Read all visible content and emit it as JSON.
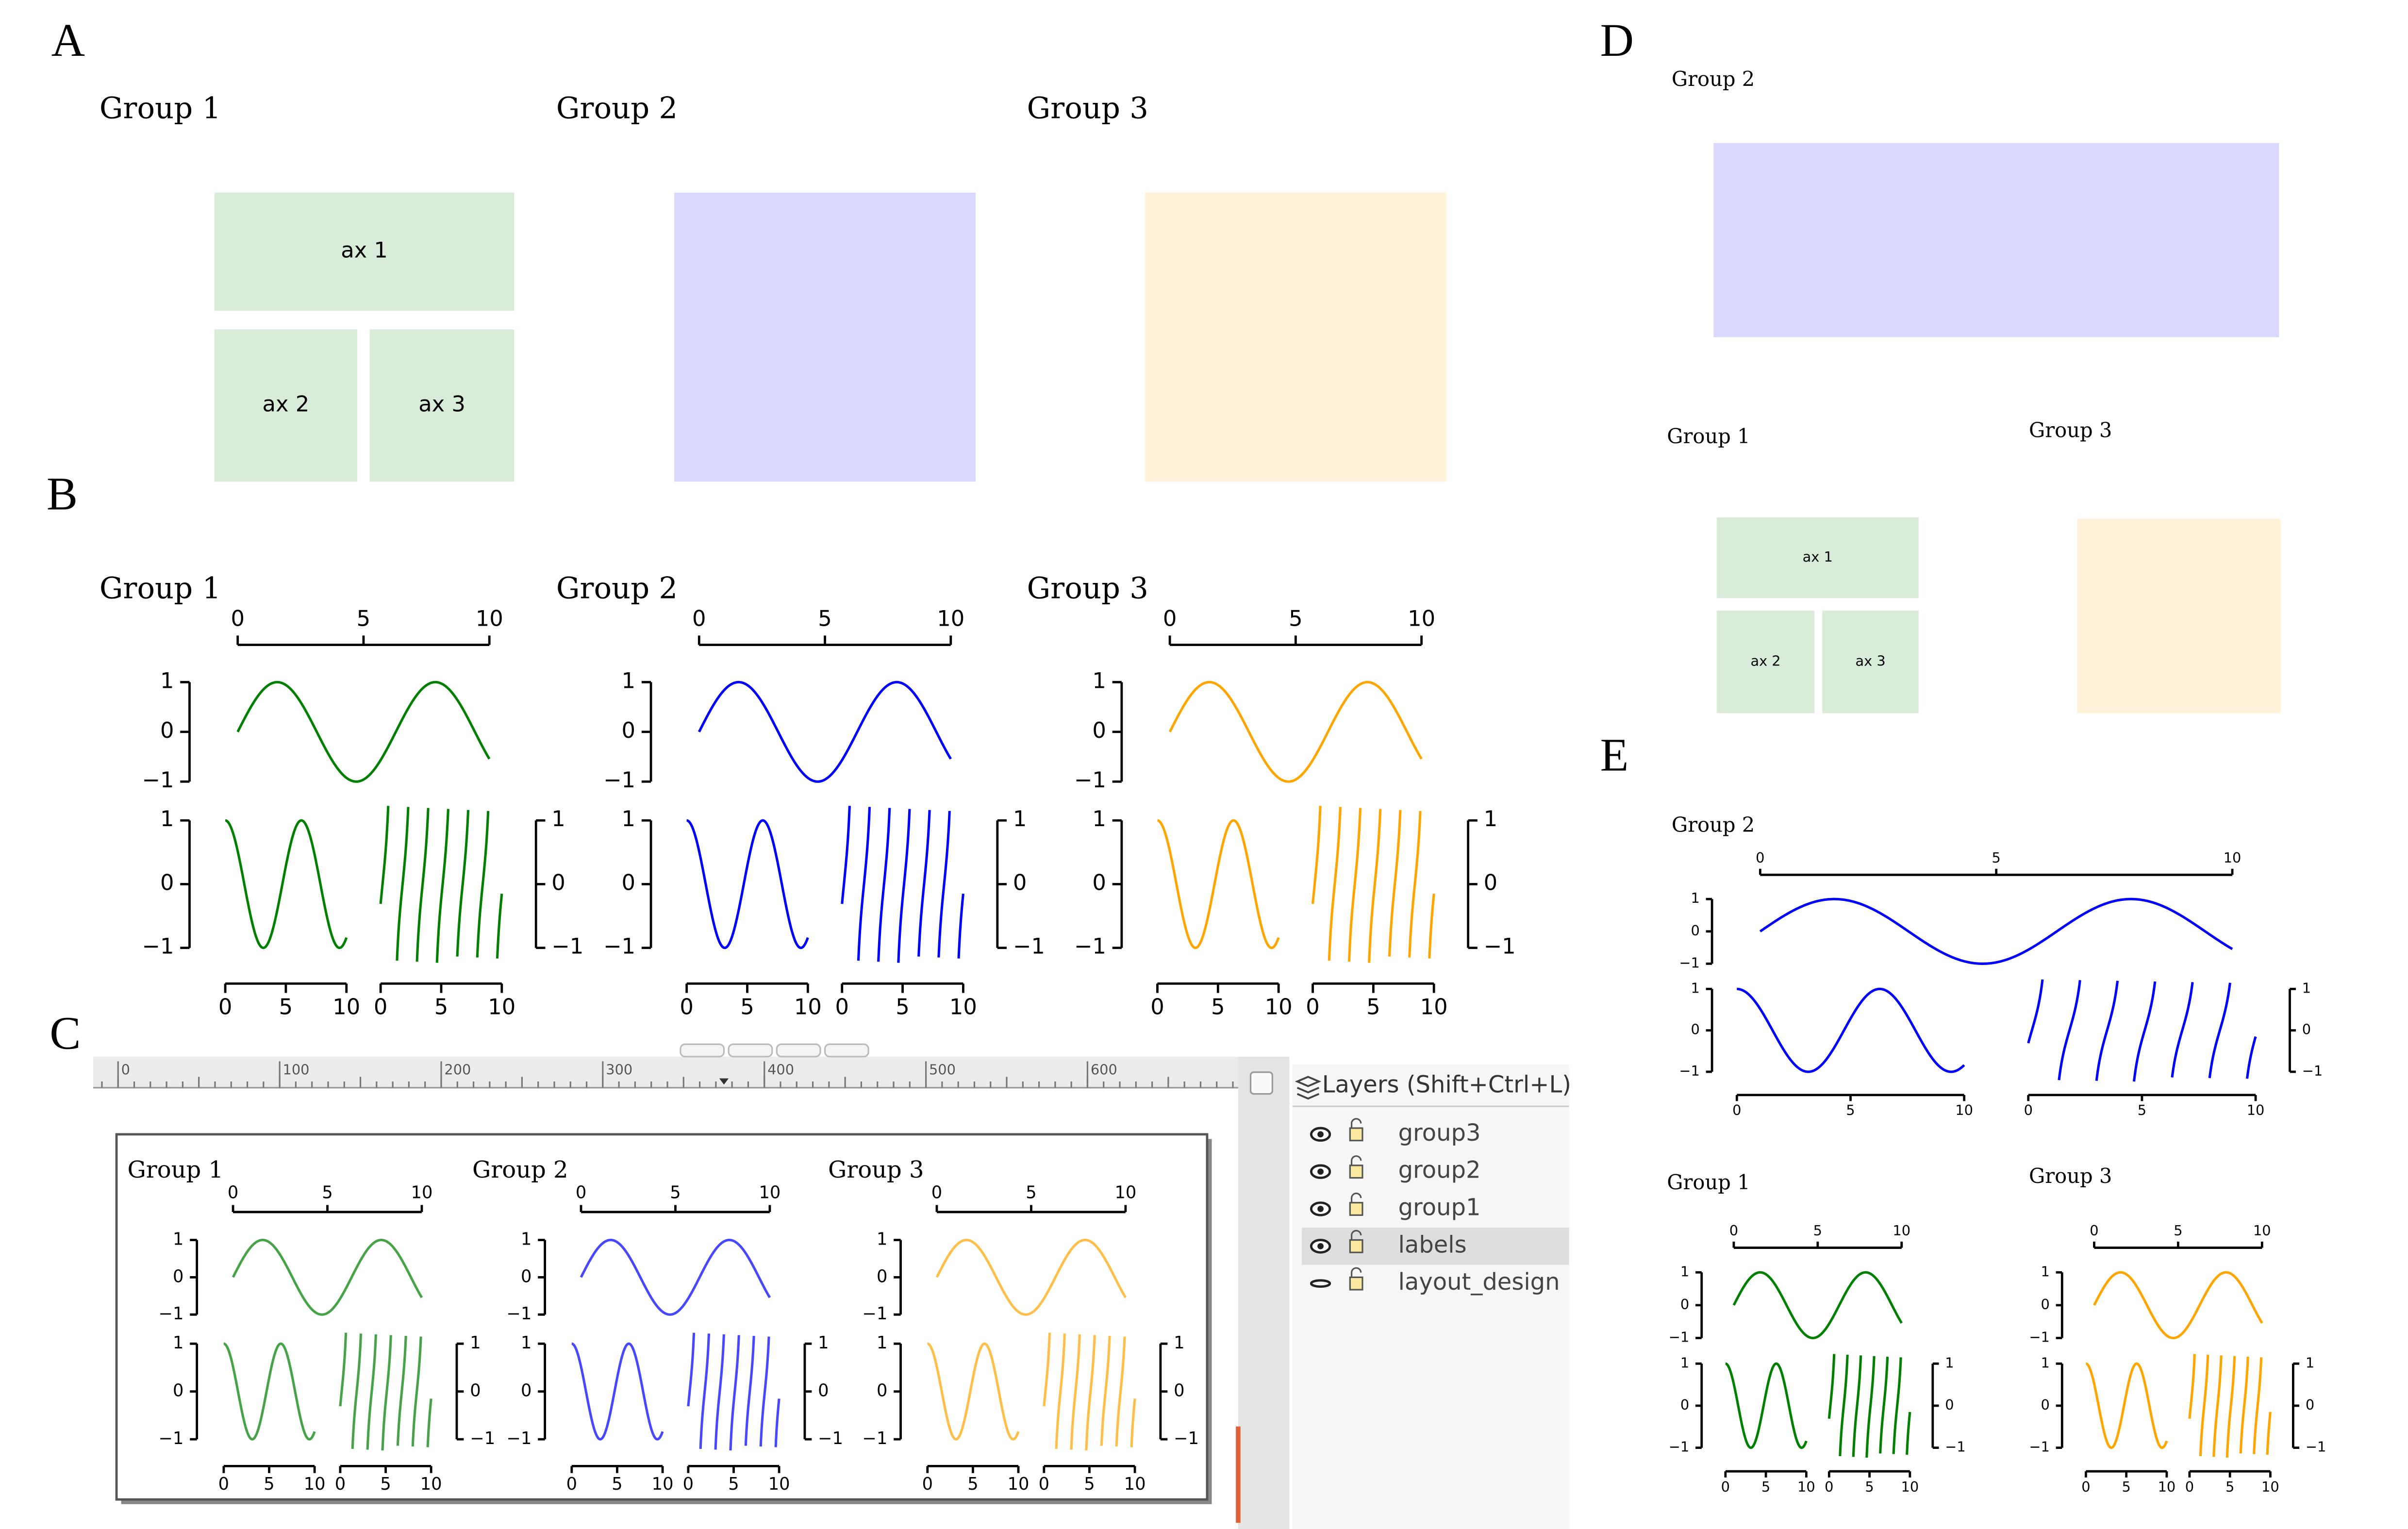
{
  "panel_labels": [
    "A",
    "B",
    "C",
    "D",
    "E"
  ],
  "groups": [
    {
      "title": "Group 1",
      "color": "#008000"
    },
    {
      "title": "Group 2",
      "color": "#0000ff"
    },
    {
      "title": "Group 3",
      "color": "#ffa500"
    }
  ],
  "axes_labels": [
    "ax 1",
    "ax 2",
    "ax 3"
  ],
  "plot_axes": {
    "xlim": [
      0,
      10
    ],
    "xticks": [
      0,
      5,
      10
    ],
    "ylim": [
      -1,
      1
    ],
    "yticks": [
      1,
      0,
      {
        "value": -1,
        "label": "−1"
      }
    ]
  },
  "editor": {
    "ruler_ticks": [
      0,
      100,
      200,
      300,
      400,
      500,
      600
    ],
    "layers_title": "Layers (Shift+Ctrl+L)",
    "layers": [
      "group3",
      "group2",
      "group1",
      "labels",
      "layout_design"
    ],
    "selected_layer": 3
  }
}
